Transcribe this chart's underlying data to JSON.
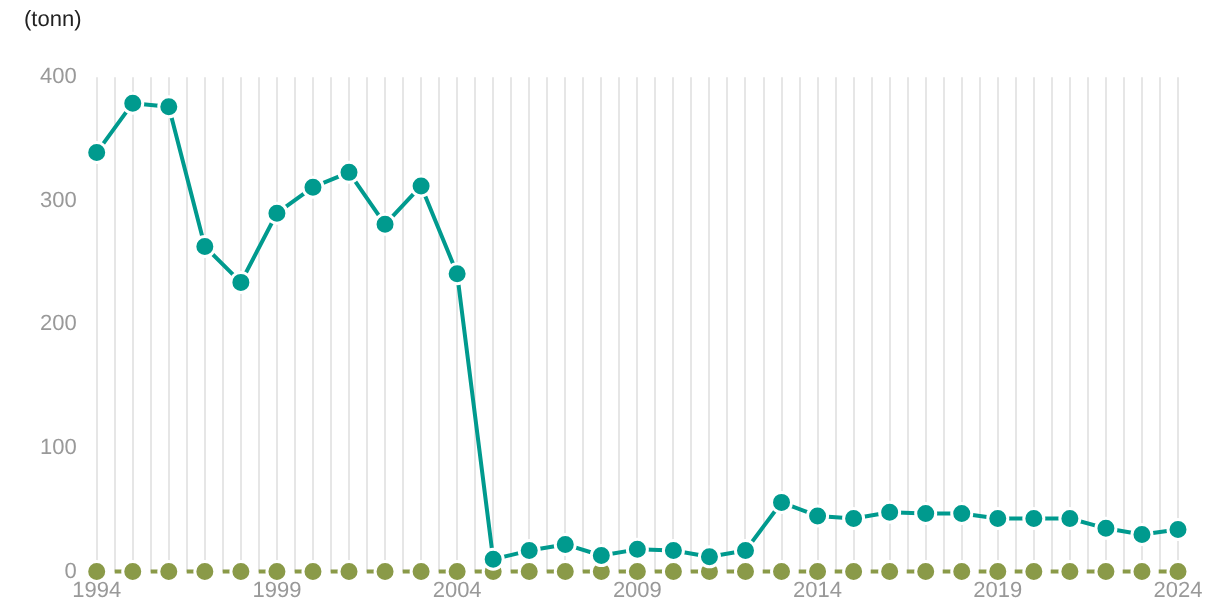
{
  "chart_data": {
    "type": "line",
    "ylabel": "(tonn)",
    "x": [
      1994,
      1995,
      1996,
      1997,
      1998,
      1999,
      2000,
      2001,
      2002,
      2003,
      2004,
      2005,
      2006,
      2007,
      2008,
      2009,
      2010,
      2011,
      2012,
      2013,
      2014,
      2015,
      2016,
      2017,
      2018,
      2019,
      2020,
      2021,
      2022,
      2023,
      2024
    ],
    "series": [
      {
        "color": "#009a8e",
        "line_style": "solid",
        "values": [
          339,
          379,
          376,
          263,
          234,
          290,
          311,
          323,
          281,
          312,
          241,
          10,
          17,
          22,
          13,
          18,
          17,
          12,
          17,
          56,
          45,
          43,
          48,
          47,
          47,
          43,
          43,
          43,
          35,
          30,
          34
        ]
      },
      {
        "color": "#8a9a48",
        "line_style": "dashed",
        "values": [
          0,
          0,
          0,
          0,
          0,
          0,
          0,
          0,
          0,
          0,
          0,
          0,
          0,
          0,
          0,
          0,
          0,
          0,
          0,
          0,
          0,
          0,
          0,
          0,
          0,
          0,
          0,
          0,
          0,
          0,
          0
        ]
      }
    ],
    "xlim": [
      1994,
      2024
    ],
    "xticks": [
      1994,
      {
        "value": 1994.5,
        "label": null
      },
      {
        "value": 1995,
        "label": null
      },
      {
        "value": 1995.5,
        "label": null
      },
      {
        "value": 1996,
        "label": null
      },
      {
        "value": 1996.5,
        "label": null
      },
      {
        "value": 1997,
        "label": null
      },
      {
        "value": 1997.5,
        "label": null
      },
      {
        "value": 1998,
        "label": null
      },
      {
        "value": 1998.5,
        "label": null
      },
      1999,
      {
        "value": 1999.5,
        "label": null
      },
      {
        "value": 2000,
        "label": null
      },
      {
        "value": 2000.5,
        "label": null
      },
      {
        "value": 2001,
        "label": null
      },
      {
        "value": 2001.5,
        "label": null
      },
      {
        "value": 2002,
        "label": null
      },
      {
        "value": 2002.5,
        "label": null
      },
      {
        "value": 2003,
        "label": null
      },
      {
        "value": 2003.5,
        "label": null
      },
      2004,
      {
        "value": 2004.5,
        "label": null
      },
      {
        "value": 2005,
        "label": null
      },
      {
        "value": 2005.5,
        "label": null
      },
      {
        "value": 2006,
        "label": null
      },
      {
        "value": 2006.5,
        "label": null
      },
      {
        "value": 2007,
        "label": null
      },
      {
        "value": 2007.5,
        "label": null
      },
      {
        "value": 2008,
        "label": null
      },
      {
        "value": 2008.5,
        "label": null
      },
      2009,
      {
        "value": 2009.5,
        "label": null
      },
      {
        "value": 2010,
        "label": null
      },
      {
        "value": 2010.5,
        "label": null
      },
      {
        "value": 2011,
        "label": null
      },
      {
        "value": 2011.5,
        "label": null
      },
      {
        "value": 2012,
        "label": null
      },
      {
        "value": 2012.5,
        "label": null
      },
      {
        "value": 2013,
        "label": null
      },
      {
        "value": 2013.5,
        "label": null
      },
      2014,
      {
        "value": 2014.5,
        "label": null
      },
      {
        "value": 2015,
        "label": null
      },
      {
        "value": 2015.5,
        "label": null
      },
      {
        "value": 2016,
        "label": null
      },
      {
        "value": 2016.5,
        "label": null
      },
      {
        "value": 2017,
        "label": null
      },
      {
        "value": 2017.5,
        "label": null
      },
      {
        "value": 2018,
        "label": null
      },
      {
        "value": 2018.5,
        "label": null
      },
      2019,
      {
        "value": 2019.5,
        "label": null
      },
      {
        "value": 2020,
        "label": null
      },
      {
        "value": 2020.5,
        "label": null
      },
      {
        "value": 2021,
        "label": null
      },
      {
        "value": 2021.5,
        "label": null
      },
      {
        "value": 2022,
        "label": null
      },
      {
        "value": 2022.5,
        "label": null
      },
      {
        "value": 2023,
        "label": null
      },
      {
        "value": 2023.5,
        "label": null
      },
      2024
    ],
    "ylim": [
      0,
      400
    ],
    "yticks": [
      0,
      100,
      200,
      300,
      400
    ],
    "grid": "x",
    "legend": false,
    "marker": "circle"
  }
}
